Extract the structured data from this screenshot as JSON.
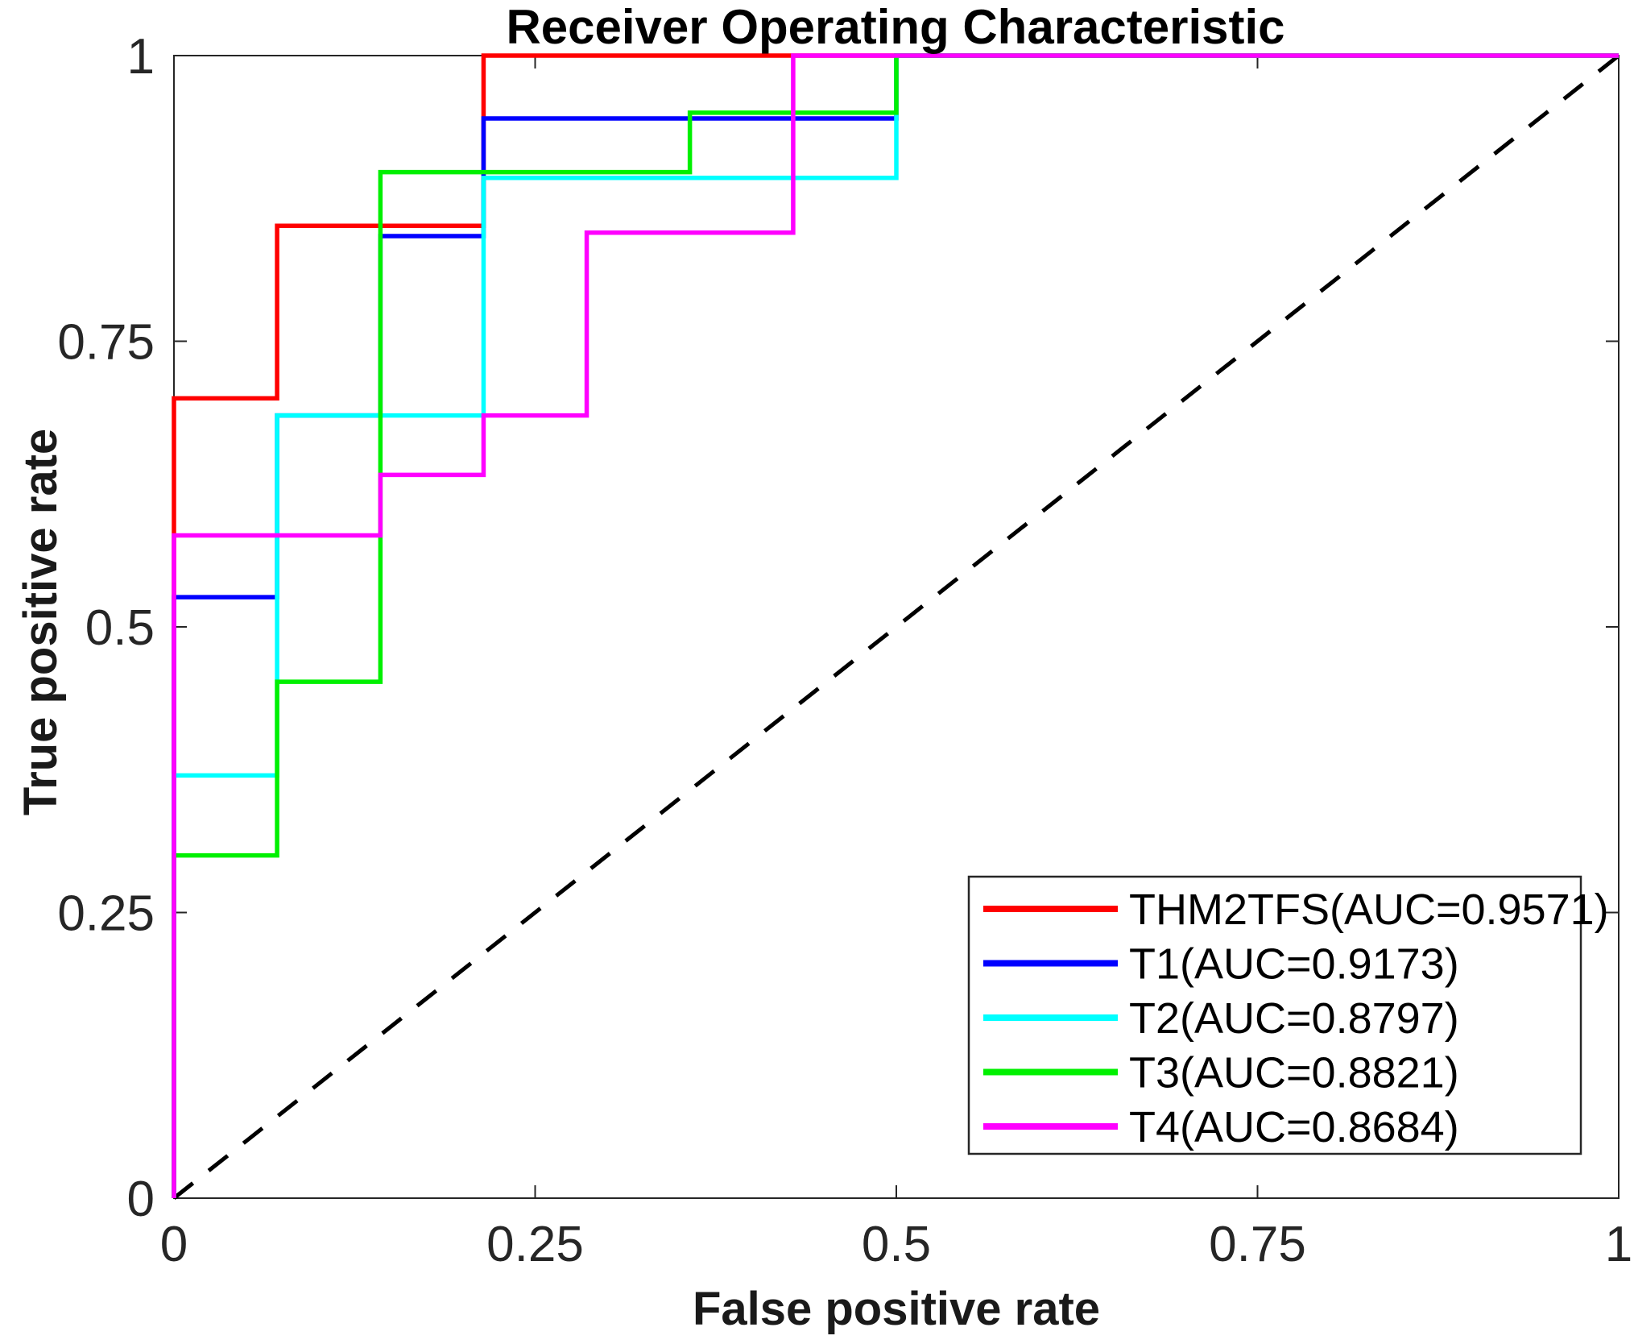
{
  "chart_data": {
    "type": "line",
    "subtype": "roc-step-curves",
    "title": "Receiver Operating Characteristic",
    "xlabel": "False positive rate",
    "ylabel": "True positive rate",
    "xlim": [
      0,
      1
    ],
    "ylim": [
      0,
      1
    ],
    "grid": false,
    "box": true,
    "tick_direction": "in",
    "xtick_values": [
      0,
      0.25,
      0.5,
      0.75,
      1
    ],
    "xtick_labels": [
      "0",
      "0.25",
      "0.5",
      "0.75",
      "1"
    ],
    "ytick_values": [
      0,
      0.25,
      0.5,
      0.75,
      1
    ],
    "ytick_labels": [
      "0",
      "0.25",
      "0.5",
      "0.75",
      "1"
    ],
    "legend_position": "southeast",
    "reference_line": {
      "id": "chance-diagonal",
      "style": "dashed",
      "color": "#000000",
      "points": [
        [
          0,
          0
        ],
        [
          1,
          1
        ]
      ]
    },
    "series": [
      {
        "id": "THM2TFS",
        "label": "THM2TFS(AUC=0.9571)",
        "auc": "0.9571",
        "color": "#ff0000",
        "points": [
          [
            0,
            0
          ],
          [
            0,
            0.7
          ],
          [
            0.0714,
            0.7
          ],
          [
            0.0714,
            0.851
          ],
          [
            0.2143,
            0.851
          ],
          [
            0.2143,
            1
          ],
          [
            1,
            1
          ]
        ]
      },
      {
        "id": "T1",
        "label": "T1(AUC=0.9173)",
        "auc": "0.9173",
        "color": "#0000ff",
        "points": [
          [
            0,
            0
          ],
          [
            0,
            0.526
          ],
          [
            0.0714,
            0.526
          ],
          [
            0.0714,
            0.685
          ],
          [
            0.1429,
            0.685
          ],
          [
            0.1429,
            0.842
          ],
          [
            0.2143,
            0.842
          ],
          [
            0.2143,
            0.945
          ],
          [
            0.5,
            0.945
          ],
          [
            0.5,
            1
          ],
          [
            1,
            1
          ]
        ]
      },
      {
        "id": "T2",
        "label": "T2(AUC=0.8797)",
        "auc": "0.8797",
        "color": "#00ffff",
        "points": [
          [
            0,
            0
          ],
          [
            0,
            0.37
          ],
          [
            0.0714,
            0.37
          ],
          [
            0.0714,
            0.685
          ],
          [
            0.2143,
            0.685
          ],
          [
            0.2143,
            0.893
          ],
          [
            0.5,
            0.893
          ],
          [
            0.5,
            1
          ],
          [
            1,
            1
          ]
        ]
      },
      {
        "id": "T3",
        "label": "T3(AUC=0.8821)",
        "auc": "0.8821",
        "color": "#00f000",
        "points": [
          [
            0,
            0
          ],
          [
            0,
            0.3
          ],
          [
            0.0714,
            0.3
          ],
          [
            0.0714,
            0.452
          ],
          [
            0.1429,
            0.452
          ],
          [
            0.1429,
            0.898
          ],
          [
            0.3571,
            0.898
          ],
          [
            0.3571,
            0.95
          ],
          [
            0.5,
            0.95
          ],
          [
            0.5,
            1
          ],
          [
            1,
            1
          ]
        ]
      },
      {
        "id": "T4",
        "label": "T4(AUC=0.8684)",
        "auc": "0.8684",
        "color": "#ff00ff",
        "points": [
          [
            0,
            0
          ],
          [
            0,
            0.58
          ],
          [
            0.1429,
            0.58
          ],
          [
            0.1429,
            0.633
          ],
          [
            0.2143,
            0.633
          ],
          [
            0.2143,
            0.685
          ],
          [
            0.2857,
            0.685
          ],
          [
            0.2857,
            0.845
          ],
          [
            0.4286,
            0.845
          ],
          [
            0.4286,
            1
          ],
          [
            1,
            1
          ]
        ]
      }
    ]
  },
  "layout_colors": {
    "axis": "#262626",
    "background": "#ffffff",
    "legend_border": "#262626"
  }
}
